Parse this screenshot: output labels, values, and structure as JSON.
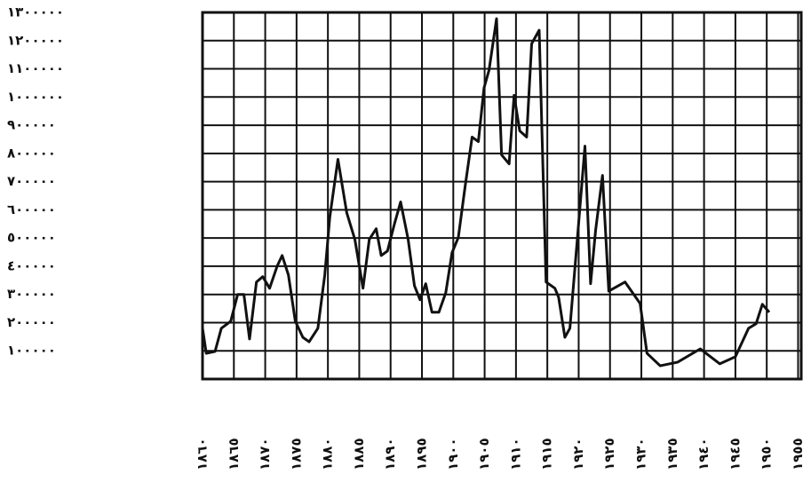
{
  "chart_data": {
    "type": "line",
    "x": [
      1860,
      1860.6,
      1862,
      1863,
      1864.5,
      1865.6,
      1866.6,
      1867.5,
      1868.6,
      1869.6,
      1870.7,
      1871.9,
      1872.7,
      1873.7,
      1874.8,
      1876,
      1877,
      1878.4,
      1879.5,
      1880.3,
      1881.6,
      1883,
      1884.3,
      1885.6,
      1886.6,
      1887.7,
      1888.5,
      1889.5,
      1890.6,
      1891.6,
      1892.8,
      1893.8,
      1894.7,
      1895.6,
      1896.6,
      1897.7,
      1898.8,
      1899.8,
      1900.8,
      1901.9,
      1903,
      1904,
      1904.9,
      1905.7,
      1906.9,
      1907.7,
      1908.9,
      1909.7,
      1910.6,
      1911.7,
      1912.5,
      1913.7,
      1914.8,
      1916.2,
      1916.8,
      1917.8,
      1918.6,
      1919.9,
      1921,
      1921.9,
      1922.7,
      1923.8,
      1924.8,
      1927.4,
      1929.8,
      1930.9,
      1933,
      1935.8,
      1939.4,
      1942.5,
      1945,
      1947.1,
      1948.3,
      1949.3,
      1950.4
    ],
    "series": [
      {
        "color": "#111111",
        "values": [
          180000,
          91000,
          98000,
          180000,
          205000,
          300000,
          300000,
          142000,
          344000,
          363000,
          322000,
          400000,
          438000,
          369000,
          205000,
          148000,
          132000,
          180000,
          369000,
          574000,
          779000,
          590000,
          495000,
          322000,
          495000,
          533000,
          438000,
          454000,
          549000,
          628000,
          495000,
          331000,
          281000,
          338000,
          237000,
          237000,
          306000,
          448000,
          502000,
          685000,
          858000,
          842000,
          1032000,
          1095000,
          1278000,
          795000,
          763000,
          1006000,
          880000,
          858000,
          1189000,
          1237000,
          344000,
          322000,
          290000,
          148000,
          180000,
          527000,
          826000,
          338000,
          527000,
          722000,
          312000,
          344000,
          268000,
          91000,
          47000,
          60000,
          107000,
          54000,
          79000,
          180000,
          196000,
          265000,
          237000
        ]
      }
    ],
    "xlim": [
      1860,
      1955.5
    ],
    "xticks": [
      {
        "value": 1860,
        "label": "١٨٦٠"
      },
      {
        "value": 1865,
        "label": "١٨٦٥"
      },
      {
        "value": 1870,
        "label": "١٨٧٠"
      },
      {
        "value": 1875,
        "label": "١٨٧٥"
      },
      {
        "value": 1880,
        "label": "١٨٨٠"
      },
      {
        "value": 1885,
        "label": "١٨٨٥"
      },
      {
        "value": 1890,
        "label": "١٨٩٠"
      },
      {
        "value": 1895,
        "label": "١٨٩٥"
      },
      {
        "value": 1900,
        "label": "١٩٠٠"
      },
      {
        "value": 1905,
        "label": "١٩٠٥"
      },
      {
        "value": 1910,
        "label": "١٩١٠"
      },
      {
        "value": 1915,
        "label": "١٩١٥"
      },
      {
        "value": 1920,
        "label": "١٩٢٠"
      },
      {
        "value": 1925,
        "label": "١٩٢٥"
      },
      {
        "value": 1930,
        "label": "١٩٣٠"
      },
      {
        "value": 1935,
        "label": "١٩٣٥"
      },
      {
        "value": 1940,
        "label": "١٩٤٠"
      },
      {
        "value": 1945,
        "label": "١٩٤٥"
      },
      {
        "value": 1950,
        "label": "١٩٥٠"
      },
      {
        "value": 1955,
        "label": "١٩٥٥"
      }
    ],
    "ylim": [
      0,
      1300000
    ],
    "yticks": [
      {
        "value": 100000,
        "label": "١٠٠٠٠٠"
      },
      {
        "value": 200000,
        "label": "٢٠٠٠٠٠"
      },
      {
        "value": 300000,
        "label": "٣٠٠٠٠٠"
      },
      {
        "value": 400000,
        "label": "٤٠٠٠٠٠"
      },
      {
        "value": 500000,
        "label": "٥٠٠٠٠٠"
      },
      {
        "value": 600000,
        "label": "٦٠٠٠٠٠"
      },
      {
        "value": 700000,
        "label": "٧٠٠٠٠٠"
      },
      {
        "value": 800000,
        "label": "٨٠٠٠٠٠"
      },
      {
        "value": 900000,
        "label": "٩٠٠٠٠٠"
      },
      {
        "value": 1000000,
        "label": "١٠٠٠٠٠٠"
      },
      {
        "value": 1100000,
        "label": "١١٠٠٠٠٠"
      },
      {
        "value": 1200000,
        "label": "١٢٠٠٠٠٠"
      },
      {
        "value": 1300000,
        "label": "١٣٠٠٠٠٠"
      }
    ],
    "grid": true
  }
}
